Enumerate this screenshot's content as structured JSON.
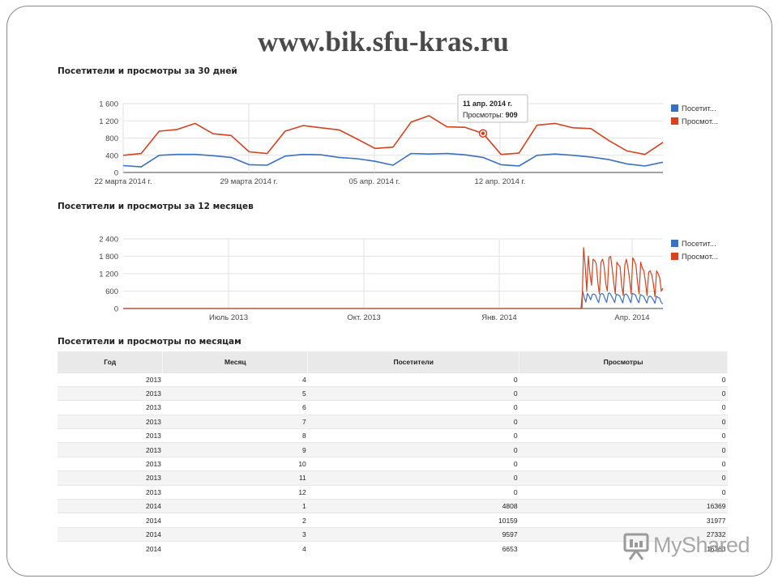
{
  "page": {
    "title": "www.bik.sfu-kras.ru"
  },
  "colors": {
    "visitors": "#3a6fc4",
    "views": "#d3431f",
    "grid": "#e2e2e2"
  },
  "sections": {
    "chart30": "Посетители и просмотры за 30 дней",
    "chart12": "Посетители и просмотры за 12 месяцев",
    "table": "Посетители и просмотры по месяцам"
  },
  "chart_data": [
    {
      "type": "line",
      "title": "Посетители и просмотры за 30 дней",
      "ylim": [
        0,
        1600
      ],
      "yticks": [
        "0",
        "400",
        "800",
        "1 200",
        "1 600"
      ],
      "xtick_labels": [
        "22 марта 2014 г.",
        "29 марта 2014 г.",
        "05 апр. 2014 г.",
        "12 апр. 2014 г."
      ],
      "legend": {
        "position": "right",
        "entries": [
          "Посетит...",
          "Просмот..."
        ]
      },
      "tooltip": {
        "date": "11 апр. 2014 г.",
        "label": "Просмотры:",
        "value": "909",
        "index": 20
      },
      "series": [
        {
          "name": "Посетит...",
          "values": [
            160,
            130,
            400,
            420,
            420,
            390,
            350,
            180,
            170,
            380,
            420,
            410,
            350,
            320,
            260,
            170,
            440,
            430,
            440,
            410,
            350,
            180,
            150,
            400,
            430,
            400,
            360,
            300,
            200,
            150,
            240
          ]
        },
        {
          "name": "Просмот...",
          "values": [
            400,
            440,
            960,
            1000,
            1140,
            900,
            860,
            480,
            440,
            960,
            1090,
            1040,
            990,
            780,
            560,
            590,
            1170,
            1320,
            1060,
            1050,
            909,
            420,
            450,
            1100,
            1140,
            1040,
            1020,
            740,
            500,
            420,
            700
          ]
        }
      ]
    },
    {
      "type": "line",
      "title": "Посетители и просмотры за 12 месяцев",
      "ylim": [
        0,
        2400
      ],
      "yticks": [
        "0",
        "600",
        "1 200",
        "1 800",
        "2 400"
      ],
      "xtick_labels": [
        "Июль 2013",
        "Окт. 2013",
        "Янв. 2014",
        "Апр. 2014"
      ],
      "legend": {
        "position": "right",
        "entries": [
          "Посетит...",
          "Просмот..."
        ]
      },
      "series": [
        {
          "name": "Посетит...",
          "values": [
            0,
            0,
            0,
            0,
            0,
            0,
            0,
            0,
            0,
            0,
            0,
            0,
            0,
            0,
            0,
            0,
            0,
            0,
            0,
            0,
            0,
            0,
            0,
            0,
            0,
            0,
            0,
            0,
            0,
            0,
            0,
            0,
            0,
            0,
            0,
            0,
            0,
            0,
            0,
            0,
            0,
            0,
            0,
            0,
            0,
            0,
            0,
            0,
            0,
            0,
            0,
            0,
            0,
            0,
            0,
            0,
            0,
            0,
            0,
            0,
            0,
            0,
            0,
            0,
            0,
            0,
            0,
            0,
            0,
            0,
            0,
            0,
            0,
            0,
            0,
            0,
            0,
            0,
            0,
            0,
            0,
            0,
            0,
            0,
            0,
            0,
            0,
            0,
            0,
            0,
            0,
            0,
            0,
            0,
            0,
            0,
            0,
            0,
            0,
            0,
            0,
            0,
            0,
            0,
            0,
            0,
            0,
            0,
            0,
            0,
            0,
            0,
            0,
            0,
            0,
            0,
            0,
            0,
            0,
            0,
            0,
            0,
            0,
            0,
            0,
            0,
            0,
            0,
            0,
            0,
            0,
            0,
            0,
            0,
            0,
            0,
            0,
            0,
            0,
            0,
            0,
            0,
            0,
            0,
            0,
            0,
            0,
            0,
            0,
            0,
            0,
            0,
            0,
            0,
            0,
            0,
            0,
            0,
            0,
            0,
            0,
            0,
            0,
            0,
            0,
            0,
            0,
            0,
            0,
            0,
            0,
            0,
            0,
            0,
            0,
            0,
            0,
            0,
            0,
            0,
            0,
            0,
            0,
            0,
            0,
            0,
            0,
            0,
            0,
            0,
            0,
            0,
            0,
            0,
            0,
            0,
            0,
            0,
            0,
            0,
            0,
            0,
            0,
            0,
            0,
            0,
            0,
            0,
            0,
            0,
            0,
            0,
            0,
            0,
            0,
            0,
            0,
            0,
            0,
            0,
            0,
            0,
            0,
            0,
            0,
            0,
            0,
            0,
            0,
            0,
            0,
            0,
            0,
            0,
            0,
            0,
            0,
            0,
            0,
            0,
            0,
            0,
            0,
            0,
            0,
            0,
            0,
            0,
            0,
            0,
            0,
            0,
            0,
            0,
            0,
            0,
            0,
            0,
            0,
            0,
            0,
            0,
            0,
            0,
            0,
            0,
            0,
            0,
            0,
            0,
            0,
            0,
            0,
            0,
            0,
            0,
            0,
            0,
            0,
            0,
            0,
            0,
            0,
            0,
            0,
            0,
            600,
            380,
            220,
            520,
            430,
            300,
            480,
            500,
            460,
            320,
            200,
            480,
            520,
            480,
            330,
            210,
            520,
            530,
            430,
            320,
            200,
            490,
            470,
            440,
            320,
            190,
            470,
            500,
            450,
            330,
            200,
            520,
            500,
            460,
            300,
            200,
            480,
            450,
            420,
            300,
            190,
            400,
            430,
            390,
            300,
            180,
            420,
            380,
            350,
            200,
            160
          ]
        },
        {
          "name": "Просмот...",
          "values": [
            0,
            0,
            0,
            0,
            0,
            0,
            0,
            0,
            0,
            0,
            0,
            0,
            0,
            0,
            0,
            0,
            0,
            0,
            0,
            0,
            0,
            0,
            0,
            0,
            0,
            0,
            0,
            0,
            0,
            0,
            0,
            0,
            0,
            0,
            0,
            0,
            0,
            0,
            0,
            0,
            0,
            0,
            0,
            0,
            0,
            0,
            0,
            0,
            0,
            0,
            0,
            0,
            0,
            0,
            0,
            0,
            0,
            0,
            0,
            0,
            0,
            0,
            0,
            0,
            0,
            0,
            0,
            0,
            0,
            0,
            0,
            0,
            0,
            0,
            0,
            0,
            0,
            0,
            0,
            0,
            0,
            0,
            0,
            0,
            0,
            0,
            0,
            0,
            0,
            0,
            0,
            0,
            0,
            0,
            0,
            0,
            0,
            0,
            0,
            0,
            0,
            0,
            0,
            0,
            0,
            0,
            0,
            0,
            0,
            0,
            0,
            0,
            0,
            0,
            0,
            0,
            0,
            0,
            0,
            0,
            0,
            0,
            0,
            0,
            0,
            0,
            0,
            0,
            0,
            0,
            0,
            0,
            0,
            0,
            0,
            0,
            0,
            0,
            0,
            0,
            0,
            0,
            0,
            0,
            0,
            0,
            0,
            0,
            0,
            0,
            0,
            0,
            0,
            0,
            0,
            0,
            0,
            0,
            0,
            0,
            0,
            0,
            0,
            0,
            0,
            0,
            0,
            0,
            0,
            0,
            0,
            0,
            0,
            0,
            0,
            0,
            0,
            0,
            0,
            0,
            0,
            0,
            0,
            0,
            0,
            0,
            0,
            0,
            0,
            0,
            0,
            0,
            0,
            0,
            0,
            0,
            0,
            0,
            0,
            0,
            0,
            0,
            0,
            0,
            0,
            0,
            0,
            0,
            0,
            0,
            0,
            0,
            0,
            0,
            0,
            0,
            0,
            0,
            0,
            0,
            0,
            0,
            0,
            0,
            0,
            0,
            0,
            0,
            0,
            0,
            0,
            0,
            0,
            0,
            0,
            0,
            0,
            0,
            0,
            0,
            0,
            0,
            0,
            0,
            0,
            0,
            0,
            0,
            0,
            0,
            0,
            0,
            0,
            0,
            0,
            0,
            0,
            0,
            0,
            0,
            0,
            0,
            0,
            0,
            0,
            0,
            0,
            0,
            0,
            0,
            0,
            0,
            0,
            0,
            0,
            0,
            0,
            0,
            0,
            0,
            0,
            0,
            0,
            0,
            0,
            0,
            0,
            0,
            0,
            0,
            2100,
            1500,
            600,
            1800,
            1200,
            800,
            1700,
            1650,
            1550,
            900,
            500,
            1600,
            1700,
            1450,
            850,
            600,
            1750,
            1800,
            1400,
            900,
            500,
            1600,
            1500,
            1450,
            800,
            450,
            1500,
            1700,
            1400,
            1000,
            500,
            1750,
            1650,
            1500,
            900,
            500,
            1600,
            1400,
            1300,
            900,
            450,
            1250,
            1300,
            1150,
            850,
            400,
            1300,
            1200,
            1050,
            600,
            700
          ]
        }
      ]
    }
  ],
  "table": {
    "headers": [
      "Год",
      "Месяц",
      "Посетители",
      "Просмотры"
    ],
    "rows": [
      [
        "2013",
        "4",
        "0",
        "0"
      ],
      [
        "2013",
        "5",
        "0",
        "0"
      ],
      [
        "2013",
        "6",
        "0",
        "0"
      ],
      [
        "2013",
        "7",
        "0",
        "0"
      ],
      [
        "2013",
        "8",
        "0",
        "0"
      ],
      [
        "2013",
        "9",
        "0",
        "0"
      ],
      [
        "2013",
        "10",
        "0",
        "0"
      ],
      [
        "2013",
        "11",
        "0",
        "0"
      ],
      [
        "2013",
        "12",
        "0",
        "0"
      ],
      [
        "2014",
        "1",
        "4808",
        "16369"
      ],
      [
        "2014",
        "2",
        "10159",
        "31977"
      ],
      [
        "2014",
        "3",
        "9597",
        "27332"
      ],
      [
        "2014",
        "4",
        "6653",
        "16363"
      ]
    ]
  },
  "watermark": {
    "text": "MyShared"
  }
}
